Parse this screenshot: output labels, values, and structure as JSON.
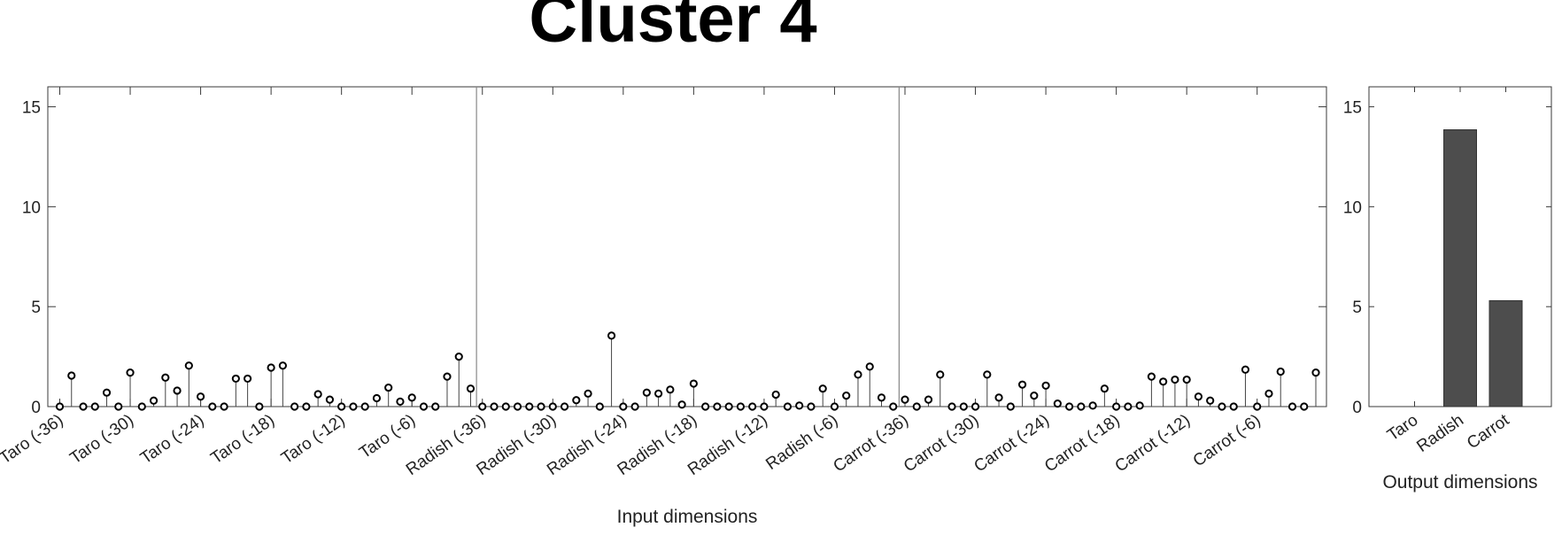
{
  "title": "Cluster 4",
  "chart_data": [
    {
      "type": "stem",
      "xlabel": "Input dimensions",
      "ylim": [
        0,
        16
      ],
      "yticks": [
        0,
        5,
        10,
        15
      ],
      "separators_after_index": [
        35,
        71
      ],
      "tick_labels": [
        "Taro (-36)",
        "Taro (-30)",
        "Taro (-24)",
        "Taro (-18)",
        "Taro (-12)",
        "Taro (-6)",
        "Radish (-36)",
        "Radish (-30)",
        "Radish (-24)",
        "Radish (-18)",
        "Radish (-12)",
        "Radish (-6)",
        "Carrot (-36)",
        "Carrot (-30)",
        "Carrot (-24)",
        "Carrot (-18)",
        "Carrot (-12)",
        "Carrot (-6)"
      ],
      "tick_label_every": 6,
      "values": [
        0,
        1.55,
        0,
        0,
        0.7,
        0,
        1.7,
        0,
        0.3,
        1.45,
        0.8,
        2.05,
        0.5,
        0,
        0,
        1.4,
        1.4,
        0,
        1.95,
        2.05,
        0,
        0,
        0.62,
        0.35,
        0,
        0,
        0,
        0.42,
        0.95,
        0.25,
        0.45,
        0,
        0,
        1.5,
        2.5,
        0.9,
        0,
        0,
        0,
        0,
        0,
        0,
        0,
        0,
        0.32,
        0.65,
        0,
        3.55,
        0,
        0,
        0.7,
        0.65,
        0.85,
        0.1,
        1.15,
        0,
        0,
        0,
        0,
        0,
        0,
        0.6,
        0,
        0.05,
        0,
        0.9,
        0,
        0.55,
        1.6,
        2.0,
        0.45,
        0,
        0.35,
        0,
        0.35,
        1.6,
        0,
        0,
        0,
        1.6,
        0.45,
        0,
        1.1,
        0.55,
        1.05,
        0.15,
        0,
        0,
        0.05,
        0.9,
        0,
        0,
        0.05,
        1.5,
        1.25,
        1.35,
        1.35,
        0.5,
        0.3,
        0,
        0,
        1.85,
        0,
        0.65,
        1.75,
        0,
        0,
        1.7
      ]
    },
    {
      "type": "bar",
      "xlabel": "Output dimensions",
      "ylim": [
        0,
        16
      ],
      "yticks": [
        0,
        5,
        10,
        15
      ],
      "categories": [
        "Taro",
        "Radish",
        "Carrot"
      ],
      "values": [
        0,
        13.85,
        5.3
      ],
      "bar_color": "#4d4d4d"
    }
  ]
}
